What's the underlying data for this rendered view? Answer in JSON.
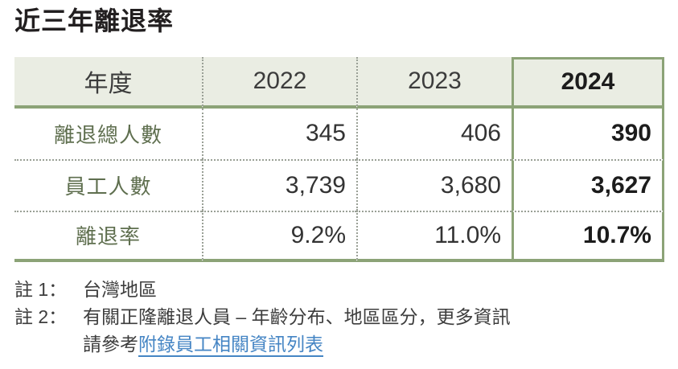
{
  "title": "近三年離退率",
  "table": {
    "header": [
      "年度",
      "2022",
      "2023",
      "2024"
    ],
    "rows": [
      {
        "label": "離退總人數",
        "values": [
          "345",
          "406",
          "390"
        ]
      },
      {
        "label": "員工人數",
        "values": [
          "3,739",
          "3,680",
          "3,627"
        ]
      },
      {
        "label": "離退率",
        "values": [
          "9.2%",
          "11.0%",
          "10.7%"
        ]
      }
    ],
    "highlighted_column": "2024"
  },
  "notes": {
    "note1": {
      "label": "註 1：",
      "text": "台灣地區"
    },
    "note2": {
      "label": "註 2：",
      "line1": "有關正隆離退人員 – 年齡分布、地區區分，更多資訊",
      "line2_prefix": "請參考",
      "link_text": "附錄員工相關資訊列表"
    }
  },
  "colors": {
    "accent_green": "#8ca377",
    "header_bg": "#eaede3",
    "label_olive": "#5f6f4f",
    "link_blue": "#4585c4"
  },
  "chart_data": {
    "type": "table",
    "title": "近三年離退率",
    "categories": [
      "2022",
      "2023",
      "2024"
    ],
    "series": [
      {
        "name": "離退總人數",
        "values": [
          345,
          406,
          390
        ]
      },
      {
        "name": "員工人數",
        "values": [
          3739,
          3680,
          3627
        ]
      },
      {
        "name": "離退率",
        "values": [
          "9.2%",
          "11.0%",
          "10.7%"
        ]
      }
    ],
    "notes": [
      "註 1： 台灣地區",
      "註 2： 有關正隆離退人員 – 年齡分布、地區區分，更多資訊請參考附錄員工相關資訊列表"
    ]
  }
}
